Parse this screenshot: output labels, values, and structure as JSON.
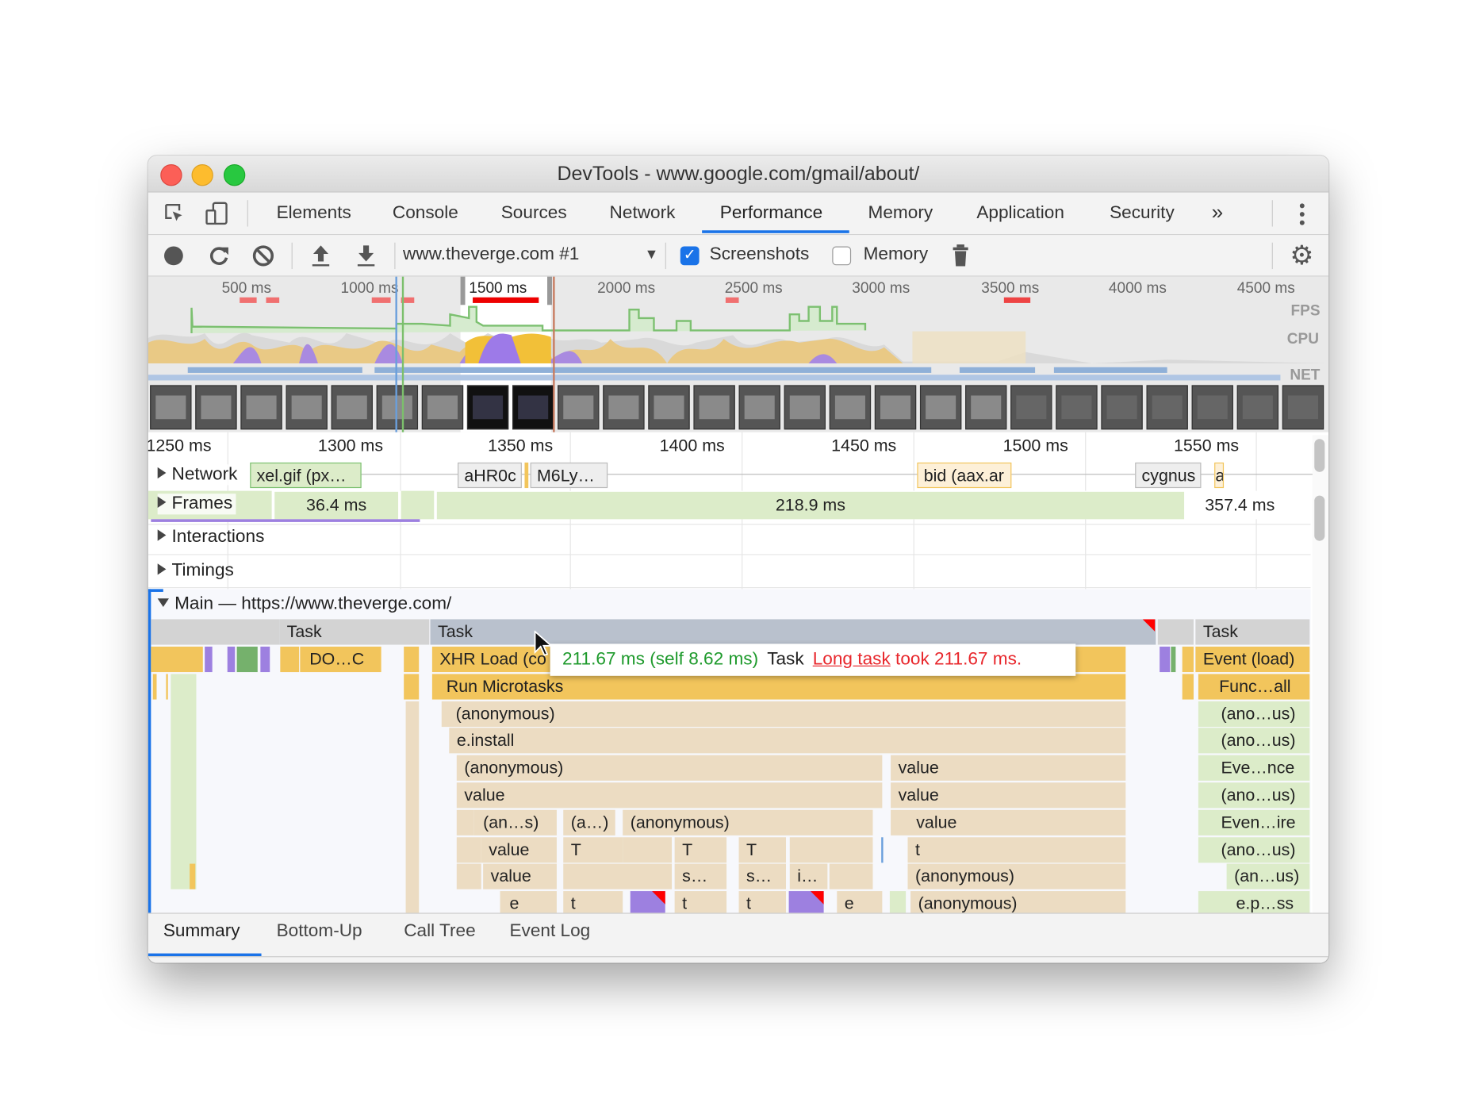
{
  "window": {
    "title": "DevTools - www.google.com/gmail/about/"
  },
  "tabs": [
    "Elements",
    "Console",
    "Sources",
    "Network",
    "Performance",
    "Memory",
    "Application",
    "Security"
  ],
  "active_tab": "Performance",
  "more_tabs_label": "»",
  "toolbar": {
    "profile_select": "www.theverge.com #1",
    "screenshots_label": "Screenshots",
    "screenshots_checked": true,
    "memory_label": "Memory",
    "memory_checked": false
  },
  "overview": {
    "ticks": [
      "500 ms",
      "1000 ms",
      "1500 ms",
      "2000 ms",
      "2500 ms",
      "3000 ms",
      "3500 ms",
      "4000 ms",
      "4500 ms"
    ],
    "lanes": {
      "fps": "FPS",
      "cpu": "CPU",
      "net": "NET"
    }
  },
  "timeline": {
    "ticks": [
      "1250 ms",
      "1300 ms",
      "1350 ms",
      "1400 ms",
      "1450 ms",
      "1500 ms",
      "1550 ms"
    ]
  },
  "tracks": {
    "network": {
      "label": "Network",
      "requests": [
        "xel.gif (px…",
        "aHR0c",
        "M6Ly…",
        "bid (aax.ar",
        "cygnus",
        "a"
      ]
    },
    "frames": {
      "label": "Frames",
      "durations": [
        "36.4 ms",
        "218.9 ms",
        "357.4 ms"
      ]
    },
    "interactions": {
      "label": "Interactions"
    },
    "timings": {
      "label": "Timings"
    },
    "main": {
      "label": "Main — https://www.theverge.com/"
    }
  },
  "flame": {
    "r0": [
      "Task",
      "Task",
      "Task"
    ],
    "r1": [
      "DO…C",
      "XHR Load (co",
      "Event (load)"
    ],
    "r2": [
      "Run Microtasks",
      "Func…all"
    ],
    "r3": [
      "(anonymous)",
      "(ano…us)"
    ],
    "r4": [
      "e.install",
      "(ano…us)"
    ],
    "r5": [
      "(anonymous)",
      "value",
      "Eve…nce"
    ],
    "r6": [
      "value",
      "value",
      "(ano…us)"
    ],
    "r7": [
      "(an…s)",
      "(a…)",
      "(anonymous)",
      "value",
      "Even…ire"
    ],
    "r8": [
      "value",
      "T",
      "T",
      "T",
      "t",
      "(ano…us)"
    ],
    "r9": [
      "value",
      "s…",
      "s…",
      "i…",
      "(anonymous)",
      "(an…us)"
    ],
    "r10": [
      "e",
      "t",
      "t",
      "t",
      "e",
      "(anonymous)",
      "e.p…ss"
    ]
  },
  "tooltip": {
    "duration": "211.67 ms (self 8.62 ms)",
    "name": "Task",
    "warning_link": "Long task",
    "warning_text": " took 211.67 ms."
  },
  "bottom_tabs": [
    "Summary",
    "Bottom-Up",
    "Call Tree",
    "Event Log"
  ],
  "active_bottom_tab": "Summary",
  "colors": {
    "accent": "#1a73e8",
    "scripting": "#f2c55c",
    "rendering": "#9d80e0",
    "painting": "#75b16c",
    "long_task": "#ff0000"
  }
}
